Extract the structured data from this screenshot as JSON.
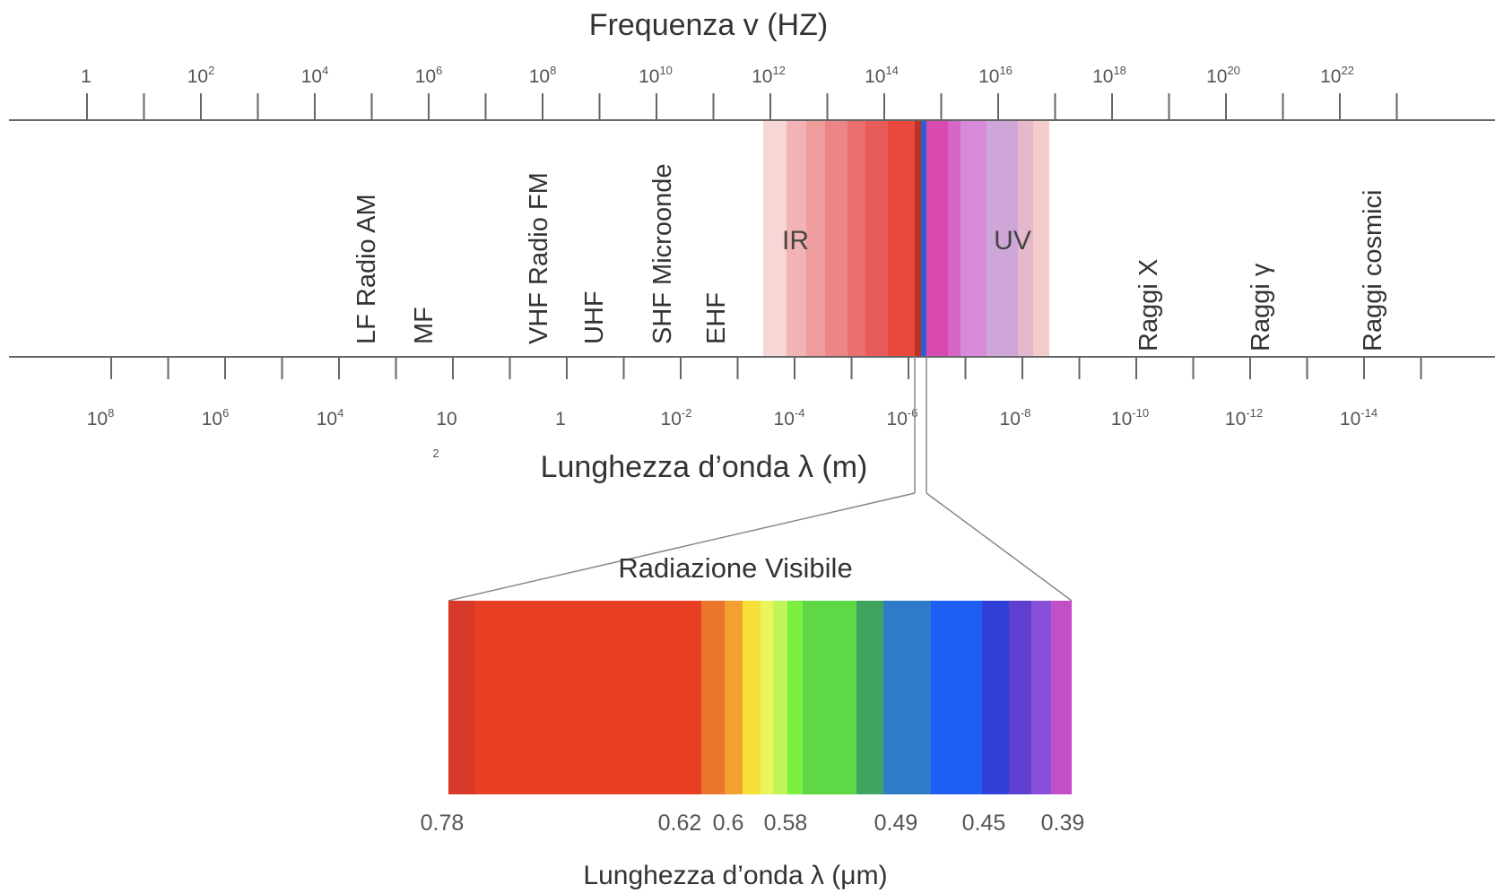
{
  "top_axis": {
    "title": "Frequenza v  (HZ)",
    "labels": [
      {
        "base": "1",
        "exp": ""
      },
      {
        "base": "10",
        "exp": "2"
      },
      {
        "base": "10",
        "exp": "4"
      },
      {
        "base": "10",
        "exp": "6"
      },
      {
        "base": "10",
        "exp": "8"
      },
      {
        "base": "10",
        "exp": "10"
      },
      {
        "base": "10",
        "exp": "12"
      },
      {
        "base": "10",
        "exp": "14"
      },
      {
        "base": "10",
        "exp": "16"
      },
      {
        "base": "10",
        "exp": "18"
      },
      {
        "base": "10",
        "exp": "20"
      },
      {
        "base": "10",
        "exp": "22"
      }
    ]
  },
  "bottom_axis": {
    "title": "Lunghezza d’onda λ  (m)",
    "labels": [
      {
        "base": "10",
        "exp": "8"
      },
      {
        "base": "10",
        "exp": "6"
      },
      {
        "base": "10",
        "exp": "4"
      },
      {
        "base": "10",
        "exp": "2",
        "exp_below": true
      },
      {
        "base": "1",
        "exp": ""
      },
      {
        "base": "10",
        "exp": "-2"
      },
      {
        "base": "10",
        "exp": "-4"
      },
      {
        "base": "10",
        "exp": "-6"
      },
      {
        "base": "10",
        "exp": "-8"
      },
      {
        "base": "10",
        "exp": "-10"
      },
      {
        "base": "10",
        "exp": "-12"
      },
      {
        "base": "10",
        "exp": "-14"
      }
    ]
  },
  "bands": [
    "LF Radio AM",
    "MF",
    "VHF Radio FM",
    "UHF",
    "SHF Microonde",
    "EHF",
    "Raggi X",
    "Raggi γ",
    "Raggi cosmici"
  ],
  "regions": {
    "ir": "IR",
    "uv": "UV"
  },
  "visible": {
    "title": "Radiazione Visibile",
    "ticks": [
      "0.78",
      "0.62",
      "0.6",
      "0.58",
      "0.49",
      "0.45",
      "0.39"
    ],
    "axis_title": "Lunghezza d’onda λ  (μm)"
  },
  "colors": {
    "ir_strips": [
      "#f7d6d6",
      "#f1b3b3",
      "#ee9c9c",
      "#ec8585",
      "#ea6f6f",
      "#e85b5b",
      "#e84a3e"
    ],
    "uv_strips": [
      "#d94ab0",
      "#d766c8",
      "#d88ad8",
      "#cfa6d8",
      "#e7b8cc",
      "#f4cccc"
    ],
    "visible_strips": [
      "#d83a2a",
      "#e83f25",
      "#e9762a",
      "#f2a030",
      "#f8e03a",
      "#e9f55a",
      "#bff55a",
      "#7cf03e",
      "#5fd845",
      "#3fa360",
      "#2e7bc8",
      "#1e5ef5",
      "#2f3fd8",
      "#5f3fd0",
      "#8a4fd8",
      "#c14fc8"
    ]
  }
}
